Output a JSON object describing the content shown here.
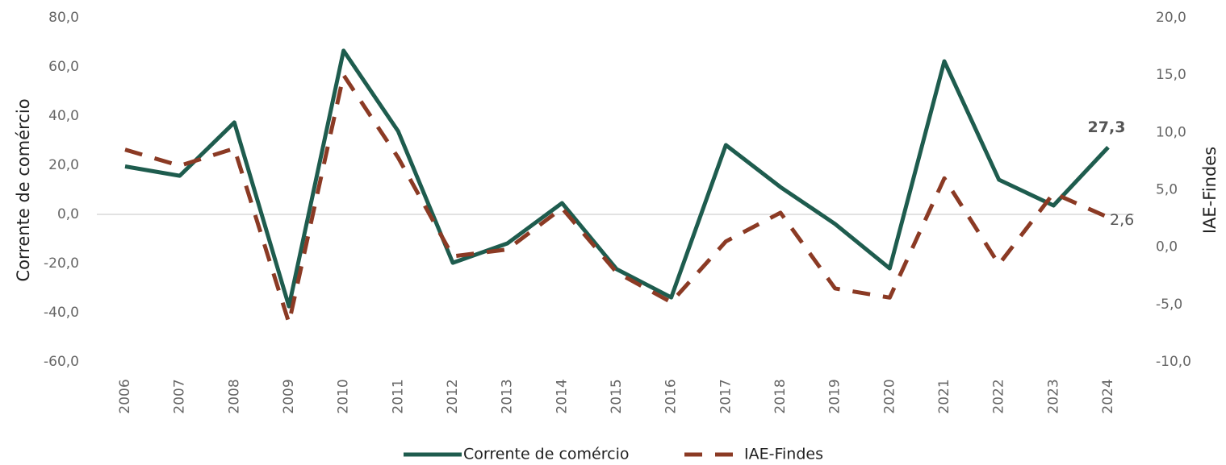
{
  "chart_data": {
    "type": "line",
    "categories": [
      "2006",
      "2007",
      "2008",
      "2009",
      "2010",
      "2011",
      "2012",
      "2013",
      "2014",
      "2015",
      "2016",
      "2017",
      "2018",
      "2019",
      "2020",
      "2021",
      "2022",
      "2023",
      "2024"
    ],
    "series": [
      {
        "name": "Corrente de comércio",
        "color": "#1e5c4e",
        "axis": "y",
        "values": [
          19.5,
          15.7,
          37.4,
          -37.4,
          66.6,
          33.8,
          -19.7,
          -11.8,
          4.6,
          -22.3,
          -33.8,
          28.2,
          11.1,
          -3.9,
          -22.0,
          62.3,
          14.1,
          3.6,
          27.3
        ],
        "value_labels": [
          null,
          null,
          null,
          null,
          null,
          null,
          null,
          null,
          null,
          null,
          null,
          null,
          null,
          null,
          null,
          null,
          null,
          null,
          "27,3"
        ]
      },
      {
        "name": "IAE-Findes",
        "color": "#8b3a24",
        "axis": "y2",
        "dashed": true,
        "values": [
          8.5,
          7.1,
          8.6,
          -6.6,
          15.0,
          7.8,
          -0.8,
          -0.2,
          3.4,
          -2.2,
          -4.8,
          0.5,
          3.0,
          -3.6,
          -4.4,
          6.0,
          -1.5,
          4.7,
          2.6
        ],
        "value_labels": [
          null,
          null,
          null,
          null,
          null,
          null,
          null,
          null,
          null,
          null,
          null,
          null,
          null,
          null,
          null,
          null,
          null,
          null,
          "2,6"
        ]
      }
    ],
    "ylabel": "Corrente de comércio",
    "y2label": "IAE-Findes",
    "ylim": [
      -60,
      80
    ],
    "yticks": [
      {
        "value": -60,
        "label": "-60,0"
      },
      {
        "value": -40,
        "label": "-40,0"
      },
      {
        "value": -20,
        "label": "-20,0"
      },
      {
        "value": 0,
        "label": "0,0"
      },
      {
        "value": 20,
        "label": "20,0"
      },
      {
        "value": 40,
        "label": "40,0"
      },
      {
        "value": 60,
        "label": "60,0"
      },
      {
        "value": 80,
        "label": "80,0"
      }
    ],
    "y2lim": [
      -10,
      20
    ],
    "y2ticks": [
      {
        "value": -10,
        "label": "-10,0"
      },
      {
        "value": -5,
        "label": "-5,0"
      },
      {
        "value": 0,
        "label": "0,0"
      },
      {
        "value": 5,
        "label": "5,0"
      },
      {
        "value": 10,
        "label": "10,0"
      },
      {
        "value": 15,
        "label": "15,0"
      },
      {
        "value": 20,
        "label": "20,0"
      }
    ],
    "legend": "bottom"
  }
}
